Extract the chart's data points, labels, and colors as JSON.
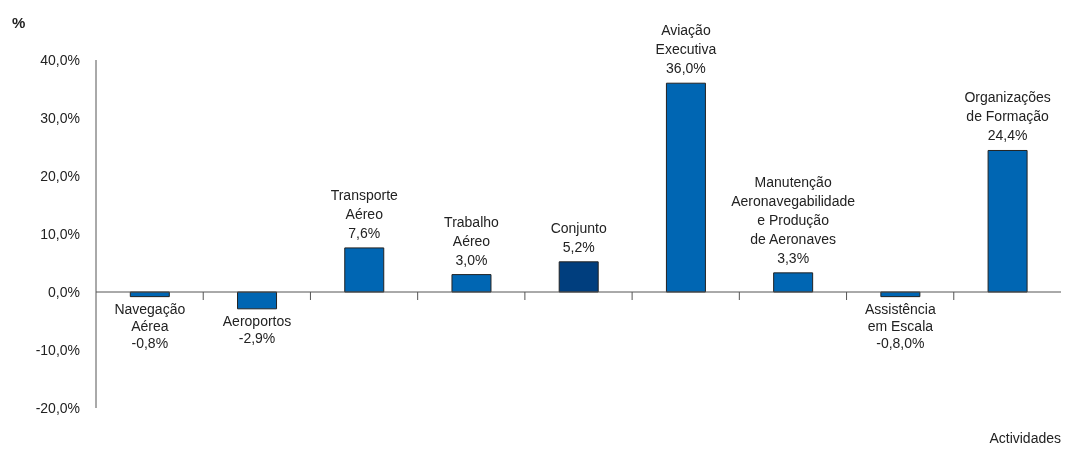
{
  "chart_data": {
    "type": "bar",
    "ylabel": "%",
    "xlabel": "Actividades",
    "categories": [
      "Navegação Aérea",
      "Aeroportos",
      "Transporte Aéreo",
      "Trabalho Aéreo",
      "Conjunto",
      "Aviação Executiva",
      "Manutenção Aeronavegabilidade e Produção de Aeronaves",
      "Assistência em Escala",
      "Organizações de Formação"
    ],
    "values": [
      -0.8,
      -2.9,
      7.6,
      3.0,
      5.2,
      36.0,
      3.3,
      -0.8,
      24.4
    ],
    "value_labels": [
      "-0,8%",
      "-2,9%",
      "7,6%",
      "3,0%",
      "5,2%",
      "36,0%",
      "3,3%",
      "-0,8,0%",
      "24,4%"
    ],
    "colors": [
      "#0066b3",
      "#0066b3",
      "#0066b3",
      "#0066b3",
      "#003e7e",
      "#0066b3",
      "#0066b3",
      "#0066b3",
      "#0066b3"
    ],
    "ylim": [
      -20,
      40
    ],
    "yticks": [
      {
        "value": -20,
        "label": "-20,0%"
      },
      {
        "value": -10,
        "label": "-10,0%"
      },
      {
        "value": 0,
        "label": "0,0%"
      },
      {
        "value": 10,
        "label": "10,0%"
      },
      {
        "value": 20,
        "label": "20,0%"
      },
      {
        "value": 30,
        "label": "30,0%"
      },
      {
        "value": 40,
        "label": "40,0%"
      }
    ],
    "grid": false,
    "legend": false
  }
}
